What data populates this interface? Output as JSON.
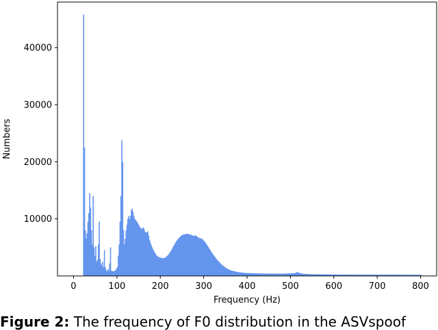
{
  "chart_data": {
    "type": "bar",
    "xlabel": "Frequency (Hz)",
    "ylabel": "Numbers",
    "xlim": [
      -37,
      837
    ],
    "ylim": [
      0,
      48000
    ],
    "xticks": [
      0,
      100,
      200,
      300,
      400,
      500,
      600,
      700,
      800
    ],
    "yticks": [
      10000,
      20000,
      30000,
      40000
    ],
    "grid": false,
    "color": "#6495ED",
    "bin_width": 2,
    "profile": [
      [
        20,
        0
      ],
      [
        21,
        27500
      ],
      [
        22,
        45800
      ],
      [
        23,
        19000
      ],
      [
        24,
        22500
      ],
      [
        25,
        12000
      ],
      [
        26,
        8000
      ],
      [
        28,
        6500
      ],
      [
        30,
        7500
      ],
      [
        32,
        9500
      ],
      [
        34,
        11000
      ],
      [
        36,
        14500
      ],
      [
        38,
        12000
      ],
      [
        40,
        8000
      ],
      [
        42,
        5500
      ],
      [
        44,
        14000
      ],
      [
        46,
        5000
      ],
      [
        48,
        3500
      ],
      [
        50,
        5200
      ],
      [
        52,
        2500
      ],
      [
        54,
        2800
      ],
      [
        56,
        5500
      ],
      [
        58,
        9500
      ],
      [
        60,
        3000
      ],
      [
        62,
        2200
      ],
      [
        64,
        1800
      ],
      [
        66,
        2500
      ],
      [
        68,
        1500
      ],
      [
        70,
        4500
      ],
      [
        72,
        1500
      ],
      [
        74,
        1000
      ],
      [
        76,
        800
      ],
      [
        78,
        1200
      ],
      [
        80,
        900
      ],
      [
        82,
        2200
      ],
      [
        84,
        5000
      ],
      [
        86,
        900
      ],
      [
        90,
        800
      ],
      [
        95,
        900
      ],
      [
        100,
        1600
      ],
      [
        104,
        5500
      ],
      [
        106,
        9500
      ],
      [
        108,
        14000
      ],
      [
        110,
        23800
      ],
      [
        112,
        20000
      ],
      [
        114,
        8000
      ],
      [
        116,
        5500
      ],
      [
        118,
        6500
      ],
      [
        120,
        8000
      ],
      [
        122,
        9000
      ],
      [
        124,
        10000
      ],
      [
        126,
        10500
      ],
      [
        128,
        10000
      ],
      [
        130,
        10500
      ],
      [
        132,
        11500
      ],
      [
        134,
        11800
      ],
      [
        136,
        11200
      ],
      [
        138,
        10500
      ],
      [
        140,
        10000
      ],
      [
        145,
        9500
      ],
      [
        150,
        8800
      ],
      [
        155,
        8200
      ],
      [
        160,
        8500
      ],
      [
        165,
        7500
      ],
      [
        170,
        7800
      ],
      [
        175,
        6000
      ],
      [
        180,
        5000
      ],
      [
        185,
        4200
      ],
      [
        190,
        3600
      ],
      [
        195,
        3300
      ],
      [
        200,
        3200
      ],
      [
        205,
        3100
      ],
      [
        210,
        3200
      ],
      [
        215,
        3500
      ],
      [
        220,
        4000
      ],
      [
        225,
        4600
      ],
      [
        230,
        5300
      ],
      [
        235,
        6000
      ],
      [
        240,
        6500
      ],
      [
        245,
        6900
      ],
      [
        250,
        7200
      ],
      [
        255,
        7300
      ],
      [
        260,
        7400
      ],
      [
        265,
        7300
      ],
      [
        270,
        7200
      ],
      [
        275,
        7000
      ],
      [
        280,
        7100
      ],
      [
        285,
        6800
      ],
      [
        290,
        6600
      ],
      [
        295,
        6500
      ],
      [
        300,
        6100
      ],
      [
        305,
        5600
      ],
      [
        310,
        5000
      ],
      [
        315,
        4400
      ],
      [
        320,
        3800
      ],
      [
        325,
        3300
      ],
      [
        330,
        2800
      ],
      [
        335,
        2400
      ],
      [
        340,
        2000
      ],
      [
        345,
        1700
      ],
      [
        350,
        1400
      ],
      [
        355,
        1200
      ],
      [
        360,
        1000
      ],
      [
        370,
        800
      ],
      [
        380,
        650
      ],
      [
        390,
        550
      ],
      [
        400,
        500
      ],
      [
        420,
        450
      ],
      [
        440,
        420
      ],
      [
        460,
        400
      ],
      [
        480,
        400
      ],
      [
        500,
        450
      ],
      [
        510,
        500
      ],
      [
        515,
        700
      ],
      [
        520,
        500
      ],
      [
        530,
        350
      ],
      [
        550,
        300
      ],
      [
        600,
        250
      ],
      [
        650,
        230
      ],
      [
        700,
        220
      ],
      [
        750,
        220
      ],
      [
        800,
        200
      ],
      [
        802,
        0
      ]
    ]
  },
  "caption": {
    "label": "Figure 2:",
    "text": " The frequency of F0 distribution in the ASVspoof"
  }
}
